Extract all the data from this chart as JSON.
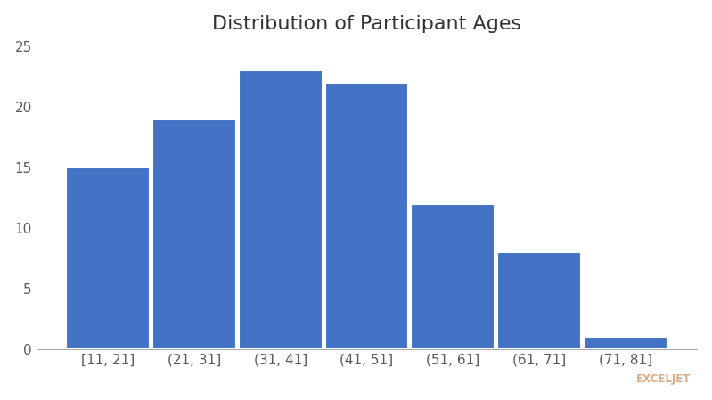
{
  "title": "Distribution of Participant Ages",
  "categories": [
    "[11, 21]",
    "(21, 31]",
    "(31, 41]",
    "(41, 51]",
    "(51, 61]",
    "(61, 71]",
    "(71, 81]"
  ],
  "values": [
    15,
    19,
    23,
    22,
    12,
    8,
    1
  ],
  "bar_color": "#4472C4",
  "ylim": [
    0,
    25
  ],
  "yticks": [
    0,
    5,
    10,
    15,
    20,
    25
  ],
  "title_fontsize": 16,
  "background_color": "#ffffff",
  "bar_edge_color": "#ffffff",
  "watermark_text": "EXCELJET",
  "watermark_color": "#d4905a"
}
